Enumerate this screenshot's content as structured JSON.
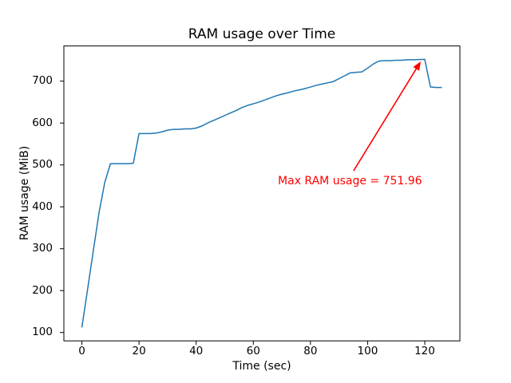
{
  "chart_data": {
    "type": "line",
    "title": "RAM usage over Time",
    "xlabel": "Time (sec)",
    "ylabel": "RAM usage (MiB)",
    "xlim": [
      -6.3,
      132.3
    ],
    "ylim": [
      80,
      784
    ],
    "xticks": [
      0,
      20,
      40,
      60,
      80,
      100,
      120
    ],
    "yticks": [
      100,
      200,
      300,
      400,
      500,
      600,
      700
    ],
    "grid": false,
    "legend": false,
    "line_color": "#1f77b4",
    "line_width": 1.5,
    "spine_color": "#000000",
    "background_color": "#ffffff",
    "series": [
      {
        "name": "RAM usage",
        "x": [
          0,
          2,
          4,
          6,
          8,
          10,
          12,
          14,
          16,
          18,
          20,
          22,
          24,
          26,
          28,
          30,
          32,
          34,
          36,
          38,
          40,
          42,
          44,
          46,
          48,
          50,
          52,
          54,
          56,
          58,
          60,
          62,
          64,
          66,
          68,
          70,
          72,
          74,
          76,
          78,
          80,
          82,
          84,
          86,
          88,
          90,
          92,
          94,
          96,
          98,
          100,
          102,
          104,
          106,
          108,
          110,
          112,
          114,
          116,
          118,
          120,
          122,
          124,
          126
        ],
        "y": [
          112,
          203,
          295,
          386,
          458,
          503,
          503,
          503,
          503,
          504,
          575,
          575,
          575,
          576,
          579,
          583,
          585,
          585,
          586,
          586,
          588,
          593,
          600,
          606,
          612,
          618,
          624,
          630,
          637,
          642,
          646,
          650,
          655,
          660,
          665,
          669,
          672,
          676,
          679,
          682,
          686,
          690,
          693,
          696,
          699,
          706,
          713,
          720,
          721,
          722,
          731,
          741,
          748,
          749,
          749,
          750,
          750,
          751,
          751,
          751.5,
          751.96,
          686,
          685,
          685
        ]
      }
    ],
    "annotation": {
      "text": "Max RAM usage = 751.96",
      "color": "#ff0000",
      "max_value": 751.96,
      "xy": [
        120,
        751.96
      ],
      "text_pos": [
        68.6,
        452
      ],
      "arrow_tail": [
        95.1,
        486
      ],
      "arrow_tip": [
        118.6,
        747
      ]
    }
  }
}
